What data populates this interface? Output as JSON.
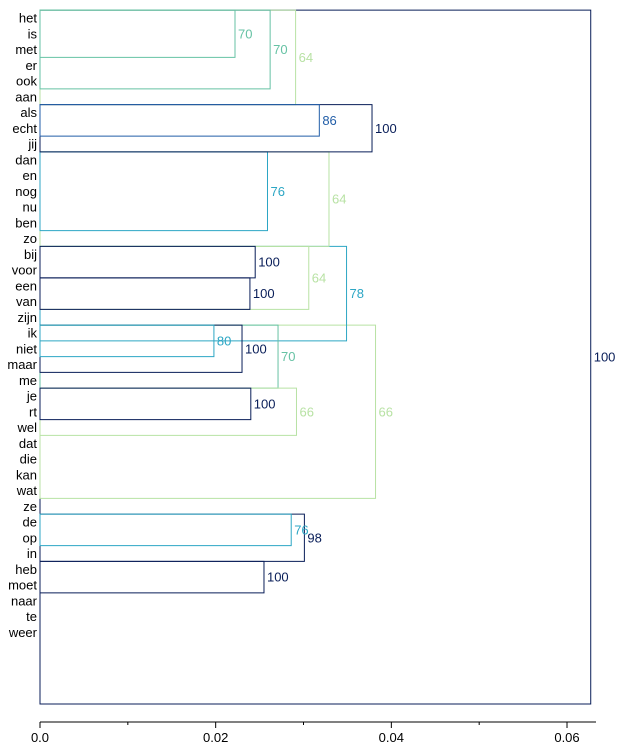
{
  "chart_data": {
    "type": "dendrogram",
    "orientation": "horizontal",
    "leaves": [
      "het",
      "is",
      "met",
      "er",
      "ook",
      "aan",
      "als",
      "echt",
      "jij",
      "dan",
      "en",
      "nog",
      "nu",
      "ben",
      "zo",
      "bij",
      "voor",
      "een",
      "van",
      "zijn",
      "ik",
      "niet",
      "maar",
      "me",
      "je",
      "rt",
      "wel",
      "dat",
      "die",
      "kan",
      "wat",
      "ze",
      "de",
      "op",
      "in",
      "heb",
      "moet",
      "naar",
      "te",
      "weer"
    ],
    "xlim": [
      0,
      0.0633
    ],
    "xticks": [
      {
        "value": 0.0,
        "label": "0.0"
      },
      {
        "value": 0.02,
        "label": "0.02"
      },
      {
        "value": 0.04,
        "label": "0.04"
      },
      {
        "value": 0.06,
        "label": "0.06"
      }
    ],
    "minor_xticks": [
      0.01,
      0.03,
      0.05
    ],
    "clusters": [
      {
        "first": 0,
        "last": 3,
        "height": 0.0222,
        "score": "70",
        "color": "#66c2a4"
      },
      {
        "first": 0,
        "last": 5,
        "height": 0.0262,
        "score": "70",
        "color": "#66c2a4"
      },
      {
        "first": 0,
        "last": 6,
        "height": 0.0291,
        "score": "64",
        "color": "#b8e2a4"
      },
      {
        "first": 6,
        "last": 8,
        "height": 0.0318,
        "score": "86",
        "color": "#225ea8"
      },
      {
        "first": 6,
        "last": 9,
        "height": 0.0378,
        "score": "100",
        "color": "#081d58"
      },
      {
        "first": 9,
        "last": 14,
        "height": 0.0259,
        "score": "76",
        "color": "#2ca6c4"
      },
      {
        "first": 9,
        "last": 15,
        "height": 0.0329,
        "score": "64",
        "color": "#b8e2a4"
      },
      {
        "first": 15,
        "last": 17,
        "height": 0.0245,
        "score": "100",
        "color": "#081d58"
      },
      {
        "first": 17,
        "last": 19,
        "height": 0.0239,
        "score": "100",
        "color": "#081d58"
      },
      {
        "first": 15,
        "last": 19,
        "height": 0.0306,
        "score": "64",
        "color": "#b8e2a4"
      },
      {
        "first": 15,
        "last": 21,
        "height": 0.0349,
        "score": "78",
        "color": "#2ca6c4"
      },
      {
        "first": 20,
        "last": 22,
        "height": 0.0198,
        "score": "80",
        "color": "#2ca6c4"
      },
      {
        "first": 20,
        "last": 23,
        "height": 0.023,
        "score": "100",
        "color": "#081d58"
      },
      {
        "first": 20,
        "last": 24,
        "height": 0.0271,
        "score": "70",
        "color": "#66c2a4"
      },
      {
        "first": 24,
        "last": 26,
        "height": 0.024,
        "score": "100",
        "color": "#081d58"
      },
      {
        "first": 24,
        "last": 27,
        "height": 0.0292,
        "score": "66",
        "color": "#b8e2a4"
      },
      {
        "first": 20,
        "last": 31,
        "height": 0.0382,
        "score": "66",
        "color": "#b8e2a4"
      },
      {
        "first": 32,
        "last": 34,
        "height": 0.0286,
        "score": "76",
        "color": "#2ca6c4"
      },
      {
        "first": 32,
        "last": 35,
        "height": 0.0301,
        "score": "98",
        "color": "#081d58"
      },
      {
        "first": 35,
        "last": 37,
        "height": 0.0255,
        "score": "100",
        "color": "#081d58"
      },
      {
        "first": 0,
        "last": 39,
        "height": 0.0627,
        "score": "100",
        "color": "#081d58"
      }
    ]
  }
}
